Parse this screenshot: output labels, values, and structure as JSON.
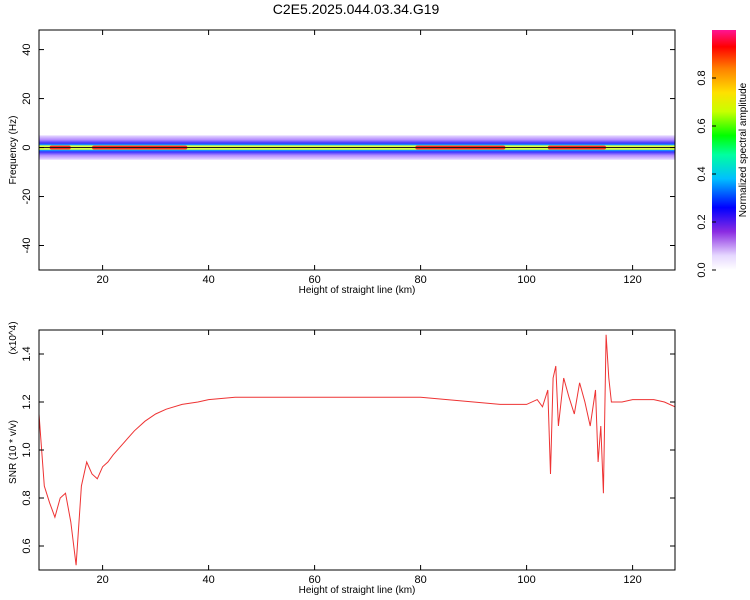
{
  "title": "C2E5.2025.044.03.34.G19",
  "chart_data": [
    {
      "type": "heatmap",
      "xlabel": "Height of straight line (km)",
      "ylabel": "Frequency (Hz)",
      "xlim": [
        8,
        128
      ],
      "ylim": [
        -50,
        48
      ],
      "x_ticks": [
        "20",
        "40",
        "60",
        "80",
        "100",
        "120"
      ],
      "y_ticks": [
        "40",
        "20",
        "0",
        "-20",
        "-40"
      ],
      "colorbar": {
        "label": "Normalized spectral amplitude",
        "range": [
          0,
          1
        ],
        "ticks": [
          "0.0",
          "0.2",
          "0.4",
          "0.6",
          "0.8"
        ]
      },
      "ridge": {
        "center_frequency": 0,
        "band_half_width_hz": 2,
        "halo_half_width_hz": [
          3,
          5
        ],
        "max_amplitude_segments": [
          {
            "x": [
              10,
              14
            ],
            "amplitude": 0.9
          },
          {
            "x": [
              18,
              36
            ],
            "amplitude": 0.95
          },
          {
            "x": [
              79,
              96
            ],
            "amplitude": 0.95
          },
          {
            "x": [
              104,
              115
            ],
            "amplitude": 0.9
          }
        ]
      }
    },
    {
      "type": "line",
      "xlabel": "Height of straight line (km)",
      "ylabel": "SNR (10 * v/v)",
      "y_multiplier": "(x10^4)",
      "xlim": [
        8,
        128
      ],
      "ylim": [
        0.5,
        1.5
      ],
      "x_ticks": [
        "20",
        "40",
        "60",
        "80",
        "100",
        "120"
      ],
      "y_ticks": [
        "1.4",
        "1.2",
        "1.0",
        "0.8",
        "0.6"
      ],
      "color": "#ee3333",
      "series": [
        {
          "x": [
            8,
            9,
            10,
            11,
            12,
            13,
            14,
            15,
            16,
            17,
            18,
            19,
            20,
            21,
            22,
            24,
            26,
            28,
            30,
            32,
            35,
            38,
            40,
            45,
            50,
            55,
            60,
            65,
            70,
            75,
            80,
            85,
            90,
            95,
            100,
            102,
            103,
            104,
            104.5,
            105,
            105.5,
            106,
            107,
            108,
            109,
            110,
            111,
            112,
            113,
            113.5,
            114,
            114.5,
            115,
            115.5,
            116,
            118,
            120,
            122,
            124,
            126,
            128
          ],
          "values": [
            1.15,
            0.85,
            0.78,
            0.72,
            0.8,
            0.82,
            0.7,
            0.52,
            0.85,
            0.95,
            0.9,
            0.88,
            0.93,
            0.95,
            0.98,
            1.03,
            1.08,
            1.12,
            1.15,
            1.17,
            1.19,
            1.2,
            1.21,
            1.22,
            1.22,
            1.22,
            1.22,
            1.22,
            1.22,
            1.22,
            1.22,
            1.21,
            1.2,
            1.19,
            1.19,
            1.21,
            1.18,
            1.25,
            0.9,
            1.3,
            1.35,
            1.1,
            1.3,
            1.22,
            1.15,
            1.28,
            1.2,
            1.1,
            1.25,
            0.95,
            1.1,
            0.82,
            1.48,
            1.3,
            1.2,
            1.2,
            1.21,
            1.21,
            1.21,
            1.2,
            1.18
          ]
        }
      ]
    }
  ]
}
